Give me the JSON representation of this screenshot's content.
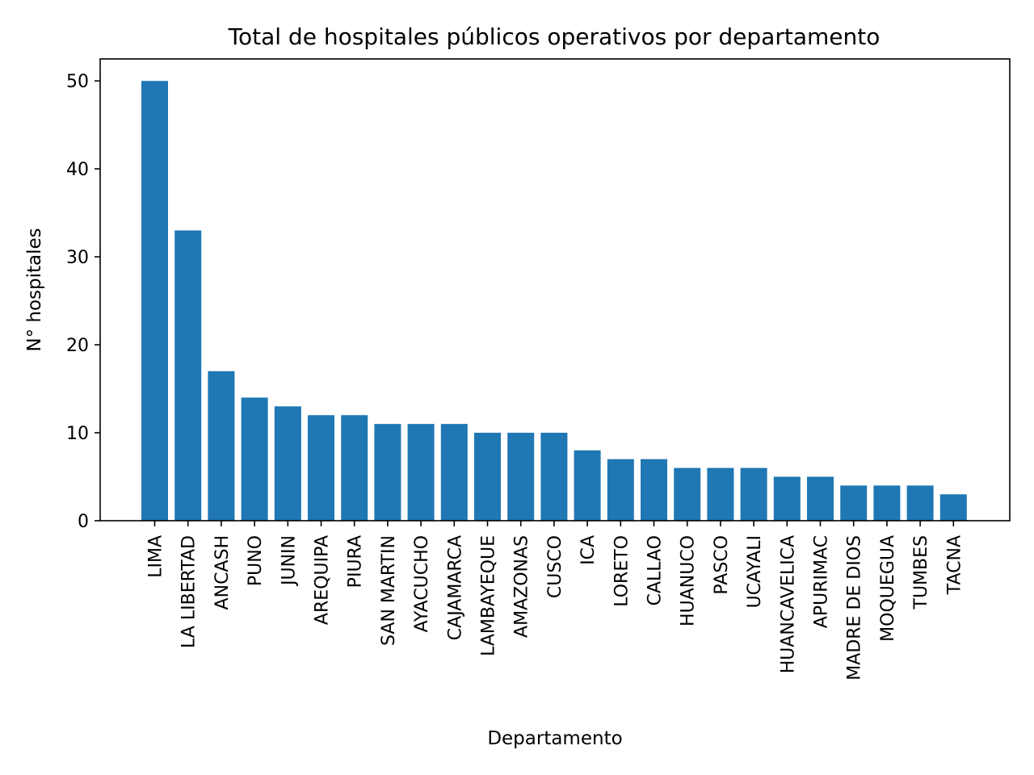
{
  "chart_data": {
    "type": "bar",
    "title": "Total de hospitales públicos operativos por departamento",
    "xlabel": "Departamento",
    "ylabel": "N° hospitales",
    "categories": [
      "LIMA",
      "LA LIBERTAD",
      "ANCASH",
      "PUNO",
      "JUNIN",
      "AREQUIPA",
      "PIURA",
      "SAN MARTIN",
      "AYACUCHO",
      "CAJAMARCA",
      "LAMBAYEQUE",
      "AMAZONAS",
      "CUSCO",
      "ICA",
      "LORETO",
      "CALLAO",
      "HUANUCO",
      "PASCO",
      "UCAYALI",
      "HUANCAVELICA",
      "APURIMAC",
      "MADRE DE DIOS",
      "MOQUEGUA",
      "TUMBES",
      "TACNA"
    ],
    "values": [
      50,
      33,
      17,
      14,
      13,
      12,
      12,
      11,
      11,
      11,
      10,
      10,
      10,
      8,
      7,
      7,
      6,
      6,
      6,
      5,
      5,
      4,
      4,
      4,
      3
    ],
    "ylim": [
      0,
      52.5
    ],
    "yticks": [
      "0",
      "10",
      "20",
      "30",
      "40",
      "50"
    ],
    "grid": false,
    "bar_color": "#1f77b4"
  }
}
